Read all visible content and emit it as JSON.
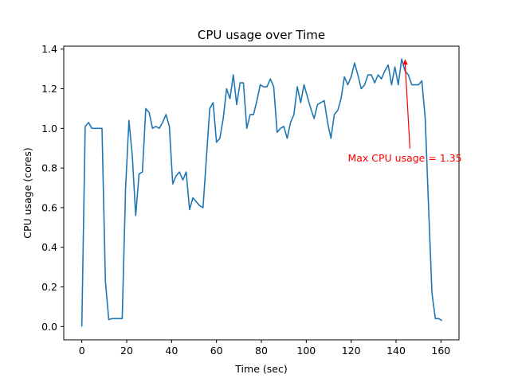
{
  "chart_data": {
    "type": "line",
    "title": "CPU usage over Time",
    "xlabel": "Time (sec)",
    "ylabel": "CPU usage (cores)",
    "xlim": [
      -8.05,
      168.05
    ],
    "ylim": [
      -0.067,
      1.415
    ],
    "xticks": [
      0,
      20,
      40,
      60,
      80,
      100,
      120,
      140,
      160
    ],
    "yticks": [
      0.0,
      0.2,
      0.4,
      0.6,
      0.8,
      1.0,
      1.2,
      1.4
    ],
    "ytick_labels": [
      "0.0",
      "0.2",
      "0.4",
      "0.6",
      "0.8",
      "1.0",
      "1.2",
      "1.4"
    ],
    "grid": false,
    "series": [
      {
        "color": "#1f77b4",
        "x": [
          0,
          1.5,
          3,
          4.5,
          6,
          7.5,
          9,
          10.5,
          12,
          13.5,
          15,
          16.5,
          18,
          19.5,
          21,
          22.5,
          24,
          25.5,
          27,
          28.5,
          30,
          31.5,
          33,
          34.5,
          36,
          37.5,
          39,
          40.5,
          42,
          43.5,
          45,
          46.5,
          48,
          49.5,
          51,
          52.5,
          54,
          55.5,
          57,
          58.5,
          60,
          61.5,
          63,
          64.5,
          66,
          67.5,
          69,
          70.5,
          72,
          73.5,
          75,
          76.5,
          78,
          79.5,
          81,
          82.5,
          84,
          85.5,
          87,
          88.5,
          90,
          91.5,
          93,
          94.5,
          96,
          97.5,
          99,
          100.5,
          102,
          103.5,
          105,
          106.5,
          108,
          109.5,
          111,
          112.5,
          114,
          115.5,
          117,
          118.5,
          120,
          121.5,
          123,
          124.5,
          126,
          127.5,
          129,
          130.5,
          132,
          133.5,
          135,
          136.5,
          138,
          139.5,
          141,
          142.5,
          144,
          145.5,
          147,
          148.5,
          150,
          151.5,
          153,
          154.5,
          156,
          157.5,
          159,
          160.5
        ],
        "y": [
          0.0,
          1.01,
          1.03,
          1.0,
          1.0,
          1.0,
          1.0,
          0.23,
          0.035,
          0.04,
          0.04,
          0.04,
          0.04,
          0.7,
          1.04,
          0.86,
          0.56,
          0.77,
          0.78,
          1.1,
          1.08,
          1.0,
          1.01,
          1.0,
          1.03,
          1.07,
          1.01,
          0.72,
          0.76,
          0.78,
          0.74,
          0.78,
          0.59,
          0.65,
          0.63,
          0.61,
          0.6,
          0.85,
          1.1,
          1.13,
          0.93,
          0.95,
          1.05,
          1.2,
          1.15,
          1.27,
          1.12,
          1.23,
          1.23,
          1.0,
          1.07,
          1.07,
          1.14,
          1.22,
          1.21,
          1.21,
          1.25,
          1.21,
          0.98,
          1.0,
          1.01,
          0.95,
          1.03,
          1.07,
          1.21,
          1.13,
          1.22,
          1.16,
          1.1,
          1.05,
          1.12,
          1.13,
          1.14,
          1.03,
          0.95,
          1.07,
          1.09,
          1.15,
          1.26,
          1.22,
          1.26,
          1.33,
          1.27,
          1.2,
          1.22,
          1.27,
          1.27,
          1.23,
          1.27,
          1.25,
          1.29,
          1.32,
          1.22,
          1.31,
          1.22,
          1.35,
          1.29,
          1.27,
          1.22,
          1.22,
          1.22,
          1.24,
          1.05,
          0.6,
          0.17,
          0.04,
          0.04,
          0.03
        ]
      }
    ],
    "annotation": {
      "text": "Max CPU usage = 1.35",
      "color": "#ff0000",
      "point": [
        144,
        1.35
      ],
      "text_pos": [
        118.5,
        0.85
      ]
    }
  }
}
